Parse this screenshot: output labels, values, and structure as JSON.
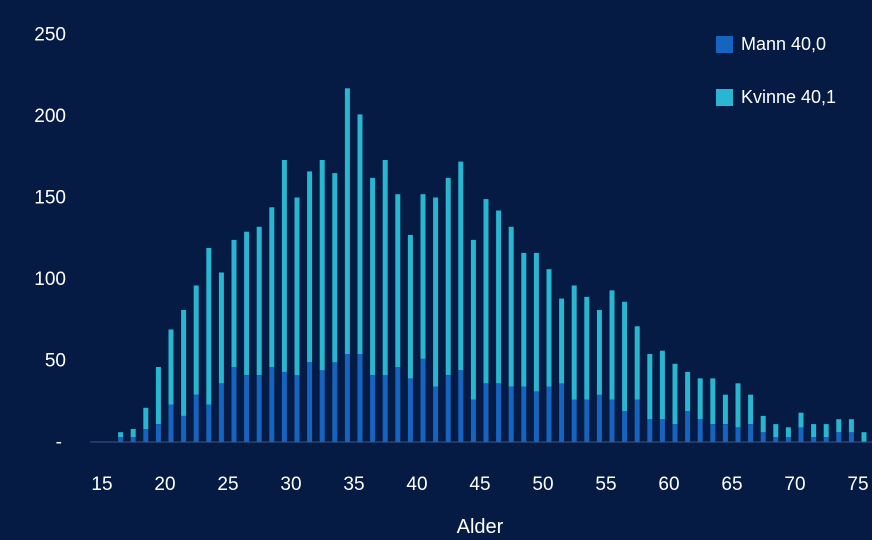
{
  "chart_data": {
    "type": "bar",
    "stacked": true,
    "xlabel": "Alder",
    "ylabel": "",
    "ylim": [
      0,
      250
    ],
    "y_ticks": [
      {
        "value": 0,
        "label": "-"
      },
      {
        "value": 50,
        "label": "50"
      },
      {
        "value": 100,
        "label": "100"
      },
      {
        "value": 150,
        "label": "150"
      },
      {
        "value": 200,
        "label": "200"
      },
      {
        "value": 250,
        "label": "250"
      }
    ],
    "x_ticks": [
      "15",
      "20",
      "25",
      "30",
      "35",
      "40",
      "45",
      "50",
      "55",
      "60",
      "65",
      "70",
      "75"
    ],
    "x_tick_values": [
      15,
      20,
      25,
      30,
      35,
      40,
      45,
      50,
      55,
      60,
      65,
      70,
      75
    ],
    "x": [
      16,
      17,
      18,
      19,
      20,
      21,
      22,
      23,
      24,
      25,
      26,
      27,
      28,
      29,
      30,
      31,
      32,
      33,
      34,
      35,
      36,
      37,
      38,
      39,
      40,
      41,
      42,
      43,
      44,
      45,
      46,
      47,
      48,
      49,
      50,
      51,
      52,
      53,
      54,
      55,
      56,
      57,
      58,
      59,
      60,
      61,
      62,
      63,
      64,
      65,
      66,
      67,
      68,
      69,
      70,
      71,
      72,
      73,
      74,
      75
    ],
    "grid": false,
    "legend_position": "top-right",
    "series": [
      {
        "name": "Mann 40,0",
        "color": "#1565c0",
        "values": [
          3,
          3,
          8,
          11,
          23,
          16,
          29,
          23,
          36,
          46,
          41,
          41,
          46,
          43,
          41,
          49,
          44,
          49,
          54,
          54,
          41,
          41,
          46,
          39,
          51,
          34,
          41,
          44,
          26,
          36,
          36,
          34,
          34,
          31,
          34,
          36,
          26,
          26,
          29,
          26,
          19,
          26,
          14,
          14,
          11,
          19,
          14,
          11,
          11,
          9,
          11,
          6,
          3,
          3,
          9,
          3,
          3,
          6,
          6,
          0
        ]
      },
      {
        "name": "Kvinne 40,1",
        "color": "#29b6d1",
        "values": [
          3,
          5,
          13,
          35,
          46,
          65,
          67,
          96,
          68,
          78,
          88,
          91,
          98,
          130,
          109,
          117,
          129,
          116,
          163,
          147,
          121,
          132,
          106,
          88,
          101,
          116,
          121,
          128,
          98,
          113,
          106,
          98,
          82,
          85,
          72,
          52,
          70,
          63,
          52,
          67,
          67,
          45,
          40,
          42,
          37,
          24,
          25,
          28,
          18,
          27,
          18,
          10,
          8,
          6,
          9,
          8,
          8,
          8,
          8,
          6
        ]
      }
    ]
  }
}
